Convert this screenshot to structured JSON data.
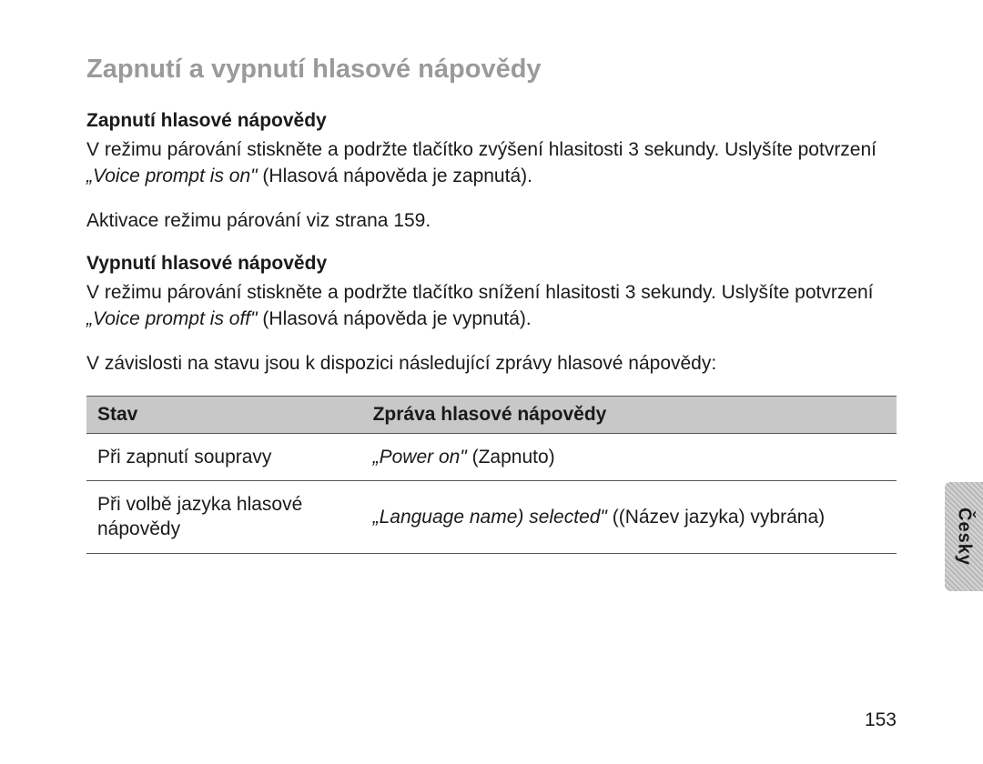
{
  "heading": "Zapnutí a vypnutí hlasové nápovědy",
  "section1": {
    "title": "Zapnutí hlasové nápovědy",
    "text_a": "V režimu párování stiskněte a podržte tlačítko zvýšení hlasitosti 3 sekundy. Uslyšíte potvrzení ",
    "text_italic": "„Voice prompt is on\"",
    "text_b": " (Hlasová nápověda je zapnutá).",
    "text2": "Aktivace režimu párování viz strana 159."
  },
  "section2": {
    "title": "Vypnutí hlasové nápovědy",
    "text_a": "V režimu párování stiskněte a podržte tlačítko snížení hlasitosti 3 sekundy. Uslyšíte potvrzení ",
    "text_italic": "„Voice prompt is off\"",
    "text_b": " (Hlasová nápověda je vypnutá).",
    "text2": "V závislosti na stavu jsou k dispozici následující zprávy hlasové nápovědy:"
  },
  "table": {
    "headers": {
      "col1": "Stav",
      "col2": "Zpráva hlasové nápovědy"
    },
    "rows": [
      {
        "stav": "Při zapnutí soupravy",
        "zprava_italic": "„Power on\"",
        "zprava_rest": " (Zapnuto)"
      },
      {
        "stav": "Při volbě jazyka hlasové nápovědy",
        "zprava_italic": "„Language name) selected\"",
        "zprava_rest": " ((Název jazyka) vybrána)"
      }
    ]
  },
  "side_tab": "Česky",
  "page_number": "153"
}
